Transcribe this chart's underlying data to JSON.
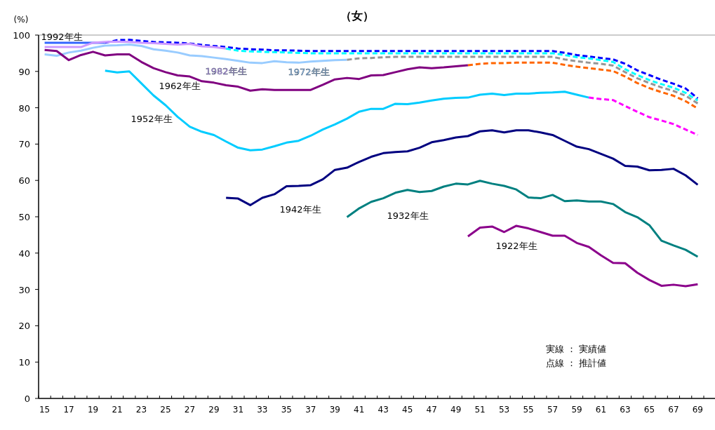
{
  "chart_data": {
    "type": "line",
    "subtitle": "（女）",
    "ylabel": "(%)",
    "categories": [
      "15",
      null,
      "17",
      null,
      "19",
      null,
      "21",
      null,
      "23",
      null,
      "25",
      null,
      "27",
      null,
      "29",
      null,
      "31",
      null,
      "33",
      null,
      "35",
      null,
      "37",
      null,
      "39",
      null,
      "41",
      null,
      "43",
      null,
      "45",
      null,
      "47",
      null,
      "49",
      null,
      "51",
      null,
      "53",
      null,
      "55",
      null,
      "57",
      null,
      "59",
      null,
      "61",
      null,
      "63",
      null,
      "65",
      null,
      "67",
      null,
      "69"
    ],
    "ylim": [
      0,
      100
    ],
    "yticks": [
      0,
      10,
      20,
      30,
      40,
      50,
      60,
      70,
      80,
      90,
      100
    ],
    "grid": false,
    "marker": "none",
    "series": [
      {
        "name": "1992年生",
        "color": "#3366ff",
        "line_style": "solid",
        "values": [
          97.9,
          97.9,
          97.9,
          97.9,
          97.9,
          97.9,
          null,
          null,
          null,
          null,
          null,
          null,
          null,
          null,
          null,
          null,
          null,
          null,
          null,
          null,
          null,
          null,
          null,
          null,
          null,
          null,
          null,
          null,
          null,
          null,
          null,
          null,
          null,
          null,
          null,
          null,
          null,
          null,
          null,
          null,
          null,
          null,
          null,
          null,
          null,
          null,
          null,
          null,
          null,
          null,
          null,
          null,
          null,
          null,
          null
        ]
      },
      {
        "color": "#0000ff",
        "line_style": "dashed",
        "values": [
          null,
          null,
          null,
          null,
          null,
          97.9,
          98.6,
          98.7,
          98.4,
          98.1,
          98.0,
          97.9,
          97.7,
          97.3,
          97.0,
          96.7,
          96.3,
          96.1,
          96.0,
          95.8,
          95.8,
          95.7,
          95.6,
          95.6,
          95.6,
          95.6,
          95.6,
          95.6,
          95.6,
          95.6,
          95.6,
          95.6,
          95.6,
          95.6,
          95.6,
          95.6,
          95.6,
          95.6,
          95.6,
          95.6,
          95.6,
          95.6,
          95.6,
          95.1,
          94.5,
          94.1,
          93.7,
          93.3,
          92.1,
          90.3,
          89.0,
          87.7,
          86.6,
          85.3,
          82.6
        ]
      },
      {
        "name": "1982年生",
        "color": "#cc99ff",
        "line_style": "solid",
        "values": [
          96.7,
          96.7,
          96.7,
          96.7,
          97.9,
          98.1,
          98.2,
          98.1,
          97.9,
          97.8,
          97.6,
          97.4,
          97.6,
          96.9,
          96.7,
          96.3,
          null,
          null,
          null,
          null,
          null,
          null,
          null,
          null,
          null,
          null,
          null,
          null,
          null,
          null,
          null,
          null,
          null,
          null,
          null,
          null,
          null,
          null,
          null,
          null,
          null,
          null,
          null,
          null,
          null,
          null,
          null,
          null,
          null,
          null,
          null,
          null,
          null,
          null,
          null
        ]
      },
      {
        "color": "#00ffff",
        "line_style": "dashed",
        "values": [
          null,
          null,
          null,
          null,
          null,
          null,
          null,
          null,
          null,
          null,
          null,
          null,
          null,
          null,
          null,
          96.3,
          95.7,
          95.5,
          95.4,
          95.3,
          95.2,
          95.1,
          95.0,
          95.0,
          95.0,
          95.0,
          95.0,
          95.0,
          95.0,
          95.0,
          95.0,
          95.0,
          95.0,
          95.0,
          95.0,
          95.0,
          95.0,
          95.0,
          95.0,
          95.0,
          95.0,
          95.0,
          95.0,
          94.5,
          93.9,
          93.6,
          93.1,
          92.6,
          90.6,
          89.0,
          87.6,
          86.5,
          85.5,
          84.1,
          82.0
        ]
      },
      {
        "name": "1972年生",
        "color": "#99ccff",
        "line_style": "solid",
        "values": [
          94.7,
          94.3,
          95.2,
          95.7,
          96.5,
          97.1,
          97.2,
          97.4,
          97.0,
          96.1,
          95.7,
          95.2,
          94.4,
          94.2,
          93.8,
          93.4,
          92.9,
          92.4,
          92.3,
          92.8,
          92.5,
          92.4,
          92.7,
          92.9,
          93.1,
          93.2,
          null,
          null,
          null,
          null,
          null,
          null,
          null,
          null,
          null,
          null,
          null,
          null,
          null,
          null,
          null,
          null,
          null,
          null,
          null,
          null,
          null,
          null,
          null,
          null,
          null,
          null,
          null,
          null,
          null
        ]
      },
      {
        "color": "#969696",
        "line_style": "dashed",
        "values": [
          null,
          null,
          null,
          null,
          null,
          null,
          null,
          null,
          null,
          null,
          null,
          null,
          null,
          null,
          null,
          null,
          null,
          null,
          null,
          null,
          null,
          null,
          null,
          null,
          null,
          93.2,
          93.6,
          93.7,
          93.9,
          94.0,
          94.0,
          94.0,
          94.0,
          94.0,
          94.0,
          94.0,
          94.0,
          94.0,
          94.0,
          94.0,
          94.0,
          94.0,
          94.0,
          93.3,
          92.8,
          92.4,
          92.1,
          91.6,
          89.8,
          88.1,
          86.8,
          85.6,
          84.6,
          83.3,
          81.2
        ]
      },
      {
        "name": "1962年生",
        "color": "#800080",
        "line_style": "solid",
        "values": [
          95.9,
          95.6,
          93.1,
          94.5,
          95.4,
          94.4,
          94.7,
          94.7,
          92.6,
          90.9,
          89.8,
          88.9,
          88.6,
          87.3,
          86.9,
          86.2,
          85.8,
          84.7,
          85.1,
          84.9,
          84.9,
          84.9,
          84.9,
          86.3,
          87.8,
          88.2,
          87.9,
          88.9,
          89.0,
          89.8,
          90.6,
          91.1,
          90.9,
          91.1,
          91.4,
          91.7,
          null,
          null,
          null,
          null,
          null,
          null,
          null,
          null,
          null,
          null,
          null,
          null,
          null,
          null,
          null,
          null,
          null,
          null,
          null
        ]
      },
      {
        "color": "#ff6600",
        "line_style": "dashed",
        "values": [
          null,
          null,
          null,
          null,
          null,
          null,
          null,
          null,
          null,
          null,
          null,
          null,
          null,
          null,
          null,
          null,
          null,
          null,
          null,
          null,
          null,
          null,
          null,
          null,
          null,
          null,
          null,
          null,
          null,
          null,
          null,
          null,
          null,
          null,
          null,
          91.7,
          92.1,
          92.3,
          92.3,
          92.4,
          92.4,
          92.4,
          92.4,
          91.8,
          91.3,
          90.9,
          90.5,
          90.1,
          88.6,
          86.8,
          85.4,
          84.3,
          83.3,
          81.8,
          79.8
        ]
      },
      {
        "name": "1952年生",
        "color": "#00ccff",
        "line_style": "solid",
        "values": [
          null,
          null,
          null,
          null,
          null,
          90.2,
          89.7,
          90.0,
          86.7,
          83.4,
          80.7,
          77.5,
          74.8,
          73.4,
          72.5,
          70.7,
          69.0,
          68.3,
          68.5,
          69.4,
          70.4,
          70.9,
          72.3,
          74.0,
          75.4,
          77.0,
          78.9,
          79.7,
          79.7,
          81.1,
          81.0,
          81.4,
          82.0,
          82.5,
          82.7,
          82.8,
          83.6,
          83.9,
          83.5,
          83.9,
          83.9,
          84.1,
          84.2,
          84.4,
          83.6,
          82.8,
          null,
          null,
          null,
          null,
          null,
          null,
          null,
          null,
          null
        ]
      },
      {
        "color": "#ff00ff",
        "line_style": "dashed",
        "values": [
          null,
          null,
          null,
          null,
          null,
          null,
          null,
          null,
          null,
          null,
          null,
          null,
          null,
          null,
          null,
          null,
          null,
          null,
          null,
          null,
          null,
          null,
          null,
          null,
          null,
          null,
          null,
          null,
          null,
          null,
          null,
          null,
          null,
          null,
          null,
          null,
          null,
          null,
          null,
          null,
          null,
          null,
          null,
          null,
          null,
          82.8,
          82.4,
          82.1,
          80.5,
          78.9,
          77.4,
          76.5,
          75.5,
          74.0,
          72.5
        ]
      },
      {
        "name": "1942年生",
        "color": "#000080",
        "line_style": "solid",
        "values": [
          null,
          null,
          null,
          null,
          null,
          null,
          null,
          null,
          null,
          null,
          null,
          null,
          null,
          null,
          null,
          55.2,
          55.0,
          53.2,
          55.2,
          56.2,
          58.4,
          58.5,
          58.7,
          60.3,
          62.9,
          63.5,
          65.1,
          66.5,
          67.5,
          67.8,
          68.0,
          69.0,
          70.5,
          71.1,
          71.8,
          72.2,
          73.5,
          73.8,
          73.2,
          73.8,
          73.8,
          73.2,
          72.5,
          70.9,
          69.3,
          68.6,
          67.3,
          66.0,
          64.0,
          63.8,
          62.8,
          62.9,
          63.2,
          61.4,
          58.8
        ]
      },
      {
        "name": "1932年生",
        "color": "#008080",
        "line_style": "solid",
        "values": [
          null,
          null,
          null,
          null,
          null,
          null,
          null,
          null,
          null,
          null,
          null,
          null,
          null,
          null,
          null,
          null,
          null,
          null,
          null,
          null,
          null,
          null,
          null,
          null,
          null,
          49.9,
          52.3,
          54.1,
          55.1,
          56.6,
          57.4,
          56.8,
          57.1,
          58.3,
          59.1,
          58.9,
          59.9,
          59.1,
          58.5,
          57.5,
          55.3,
          55.1,
          56.0,
          54.3,
          54.5,
          54.2,
          54.2,
          53.5,
          51.3,
          49.9,
          47.7,
          43.4,
          42.1,
          40.9,
          39.0
        ]
      },
      {
        "name": "1922年生",
        "color": "#8b008b",
        "line_style": "solid",
        "values": [
          null,
          null,
          null,
          null,
          null,
          null,
          null,
          null,
          null,
          null,
          null,
          null,
          null,
          null,
          null,
          null,
          null,
          null,
          null,
          null,
          null,
          null,
          null,
          null,
          null,
          null,
          null,
          null,
          null,
          null,
          null,
          null,
          null,
          null,
          null,
          44.6,
          47.0,
          47.3,
          45.8,
          47.5,
          46.8,
          45.8,
          44.8,
          44.8,
          42.8,
          41.7,
          39.4,
          37.3,
          37.2,
          34.6,
          32.6,
          31.0,
          31.3,
          30.9,
          31.4
        ]
      }
    ],
    "annotations": [
      "実線 ： 実績値",
      "点線 ： 推計値"
    ]
  }
}
